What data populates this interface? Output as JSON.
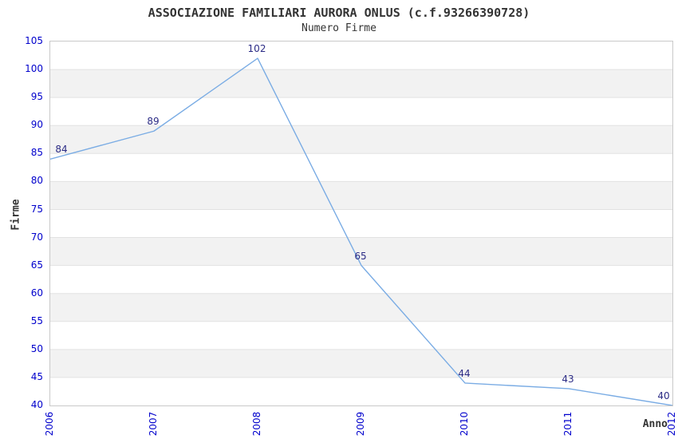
{
  "chart_data": {
    "type": "line",
    "title": "ASSOCIAZIONE FAMILIARI AURORA ONLUS (c.f.93266390728)",
    "subtitle": "Numero Firme",
    "xlabel": "Anno",
    "ylabel": "Firme",
    "categories": [
      "2006",
      "2007",
      "2008",
      "2009",
      "2010",
      "2011",
      "2012"
    ],
    "values": [
      84,
      89,
      102,
      65,
      44,
      43,
      40
    ],
    "ylim": [
      40,
      105
    ],
    "ytick_step": 5,
    "grid": "horizontal-bands-alternating",
    "legend": "none",
    "colors": {
      "line": "#7aace4",
      "tick_label": "#0000cc",
      "data_label": "#2b2b85",
      "title": "#333333",
      "band": "#f2f2f2",
      "grid_line": "#e2e2e2",
      "plot_border": "#c9c9c9",
      "background": "#ffffff"
    }
  }
}
